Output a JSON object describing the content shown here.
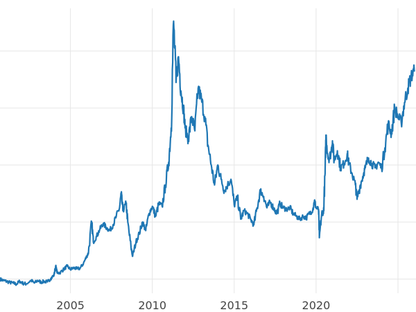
{
  "chart_data": {
    "type": "line",
    "title": "",
    "xlabel": "",
    "ylabel": "",
    "x_ticks": [
      "2005",
      "2010",
      "2015",
      "2020"
    ],
    "xlim": [
      2000.7,
      2026.1
    ],
    "ylim": [
      0,
      100
    ],
    "y_gridlines": [
      5,
      25,
      45,
      65,
      85
    ],
    "grid": true,
    "line_color": "#1f77b4",
    "series": [
      {
        "values": [
          [
            2000.7,
            5
          ],
          [
            2000.9,
            4.5
          ],
          [
            2001.1,
            4.2
          ],
          [
            2001.3,
            3.8
          ],
          [
            2001.5,
            3.6
          ],
          [
            2001.7,
            3.2
          ],
          [
            2001.9,
            4.2
          ],
          [
            2002.1,
            3.5
          ],
          [
            2002.3,
            3.3
          ],
          [
            2002.6,
            4.5
          ],
          [
            2002.8,
            3.6
          ],
          [
            2003.0,
            4.5
          ],
          [
            2003.2,
            3.9
          ],
          [
            2003.4,
            4.2
          ],
          [
            2003.6,
            4.0
          ],
          [
            2003.8,
            5.2
          ],
          [
            2004.0,
            6.4
          ],
          [
            2004.1,
            9.6
          ],
          [
            2004.2,
            7.0
          ],
          [
            2004.4,
            7.4
          ],
          [
            2004.6,
            8.5
          ],
          [
            2004.8,
            9.5
          ],
          [
            2005.0,
            8.4
          ],
          [
            2005.2,
            8.9
          ],
          [
            2005.4,
            8.6
          ],
          [
            2005.6,
            8.8
          ],
          [
            2005.8,
            10.6
          ],
          [
            2006.0,
            13.0
          ],
          [
            2006.1,
            14.2
          ],
          [
            2006.3,
            25.0
          ],
          [
            2006.4,
            18.0
          ],
          [
            2006.6,
            20.0
          ],
          [
            2006.8,
            22.5
          ],
          [
            2007.0,
            24.5
          ],
          [
            2007.2,
            23.0
          ],
          [
            2007.4,
            22.0
          ],
          [
            2007.6,
            24.0
          ],
          [
            2007.8,
            27.0
          ],
          [
            2008.0,
            30.0
          ],
          [
            2008.1,
            35.0
          ],
          [
            2008.2,
            29.0
          ],
          [
            2008.4,
            31.5
          ],
          [
            2008.5,
            25.0
          ],
          [
            2008.7,
            16.0
          ],
          [
            2008.8,
            13.0
          ],
          [
            2009.0,
            18.0
          ],
          [
            2009.2,
            21.0
          ],
          [
            2009.4,
            25.0
          ],
          [
            2009.6,
            22.0
          ],
          [
            2009.8,
            28.0
          ],
          [
            2010.0,
            30.5
          ],
          [
            2010.2,
            27.0
          ],
          [
            2010.4,
            31.5
          ],
          [
            2010.6,
            30.5
          ],
          [
            2010.8,
            38.0
          ],
          [
            2011.0,
            46.0
          ],
          [
            2011.15,
            58.0
          ],
          [
            2011.3,
            95.5
          ],
          [
            2011.45,
            74.0
          ],
          [
            2011.6,
            83.0
          ],
          [
            2011.75,
            71.0
          ],
          [
            2011.9,
            65.0
          ],
          [
            2012.0,
            58.0
          ],
          [
            2012.2,
            54.0
          ],
          [
            2012.4,
            62.0
          ],
          [
            2012.6,
            57.0
          ],
          [
            2012.8,
            72.0
          ],
          [
            2013.0,
            68.0
          ],
          [
            2013.2,
            62.0
          ],
          [
            2013.4,
            52.0
          ],
          [
            2013.6,
            45.0
          ],
          [
            2013.8,
            38.0
          ],
          [
            2014.0,
            45.0
          ],
          [
            2014.2,
            40.0
          ],
          [
            2014.4,
            36.0
          ],
          [
            2014.6,
            38.0
          ],
          [
            2014.8,
            40.0
          ],
          [
            2015.0,
            31.0
          ],
          [
            2015.2,
            33.5
          ],
          [
            2015.4,
            26.0
          ],
          [
            2015.6,
            29.0
          ],
          [
            2015.8,
            28.0
          ],
          [
            2016.0,
            26.0
          ],
          [
            2016.2,
            24.0
          ],
          [
            2016.4,
            30.0
          ],
          [
            2016.6,
            36.0
          ],
          [
            2016.8,
            34.0
          ],
          [
            2017.0,
            30.0
          ],
          [
            2017.2,
            32.0
          ],
          [
            2017.4,
            30.0
          ],
          [
            2017.6,
            28.0
          ],
          [
            2017.8,
            31.5
          ],
          [
            2018.0,
            30.0
          ],
          [
            2018.2,
            29.5
          ],
          [
            2018.4,
            30.0
          ],
          [
            2018.6,
            28.0
          ],
          [
            2018.8,
            27.0
          ],
          [
            2019.0,
            26.0
          ],
          [
            2019.2,
            27.0
          ],
          [
            2019.4,
            26.5
          ],
          [
            2019.6,
            28.0
          ],
          [
            2019.8,
            29.5
          ],
          [
            2019.9,
            32.5
          ],
          [
            2020.0,
            30.0
          ],
          [
            2020.15,
            29.5
          ],
          [
            2020.2,
            19.5
          ],
          [
            2020.35,
            28.5
          ],
          [
            2020.45,
            28.0
          ],
          [
            2020.55,
            42.0
          ],
          [
            2020.6,
            55.5
          ],
          [
            2020.75,
            47.0
          ],
          [
            2020.9,
            49.0
          ],
          [
            2021.0,
            53.5
          ],
          [
            2021.1,
            46.5
          ],
          [
            2021.3,
            50.0
          ],
          [
            2021.5,
            44.0
          ],
          [
            2021.7,
            45.5
          ],
          [
            2021.9,
            49.0
          ],
          [
            2022.0,
            45.5
          ],
          [
            2022.2,
            42.0
          ],
          [
            2022.4,
            38.0
          ],
          [
            2022.5,
            33.0
          ],
          [
            2022.7,
            38.0
          ],
          [
            2022.9,
            42.0
          ],
          [
            2023.0,
            44.0
          ],
          [
            2023.2,
            47.5
          ],
          [
            2023.4,
            45.5
          ],
          [
            2023.6,
            44.0
          ],
          [
            2023.8,
            46.0
          ],
          [
            2024.0,
            44.0
          ],
          [
            2024.2,
            51.0
          ],
          [
            2024.4,
            59.5
          ],
          [
            2024.6,
            56.0
          ],
          [
            2024.8,
            65.0
          ],
          [
            2025.0,
            62.0
          ],
          [
            2025.2,
            60.0
          ],
          [
            2025.4,
            67.0
          ],
          [
            2025.6,
            72.0
          ],
          [
            2025.8,
            76.0
          ],
          [
            2026.0,
            78.0
          ]
        ]
      }
    ]
  }
}
